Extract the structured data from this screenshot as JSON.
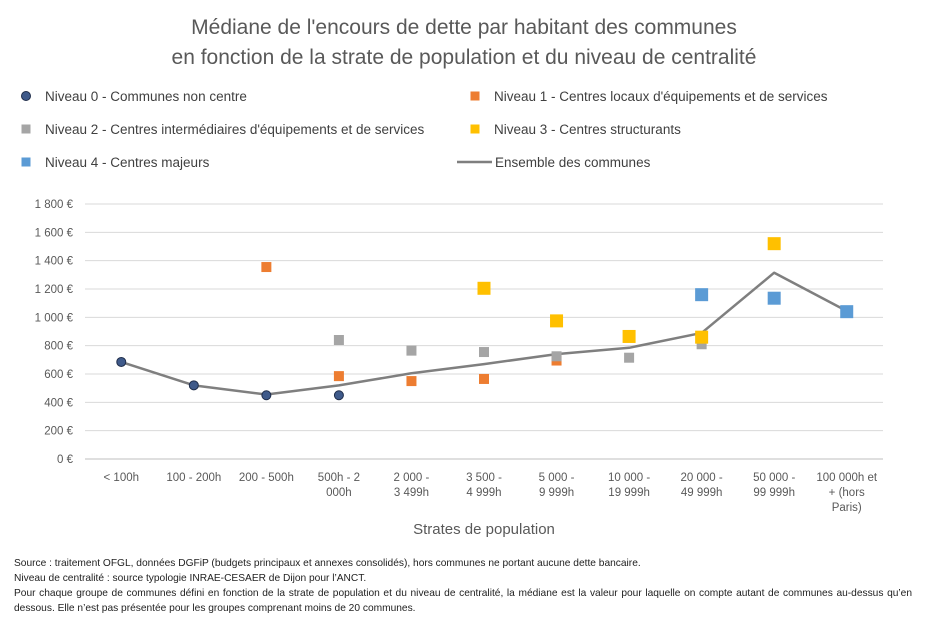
{
  "chart_data": {
    "type": "scatter",
    "title": [
      "Médiane de l'encours de dette par habitant des communes",
      "en fonction de la strate de population et du niveau de centralité"
    ],
    "xlabel": "Strates de population",
    "ylabel": "",
    "categories": [
      [
        "< 100h"
      ],
      [
        "100 - 200h"
      ],
      [
        "200 - 500h"
      ],
      [
        "500h - 2",
        "000h"
      ],
      [
        "2 000 -",
        "3 499h"
      ],
      [
        "3 500 -",
        "4 999h"
      ],
      [
        "5 000 -",
        "9 999h"
      ],
      [
        "10 000 -",
        "19 999h"
      ],
      [
        "20 000 -",
        "49 999h"
      ],
      [
        "50 000 -",
        "99 999h"
      ],
      [
        "100 000h et",
        "+ (hors",
        "Paris)"
      ]
    ],
    "ylim": [
      0,
      1800
    ],
    "yticks": [
      {
        "value": 0,
        "label": "0 €"
      },
      {
        "value": 200,
        "label": "200 €"
      },
      {
        "value": 400,
        "label": "400 €"
      },
      {
        "value": 600,
        "label": "600 €"
      },
      {
        "value": 800,
        "label": "800 €"
      },
      {
        "value": 1000,
        "label": "1 000 €"
      },
      {
        "value": 1200,
        "label": "1 200 €"
      },
      {
        "value": 1400,
        "label": "1 400 €"
      },
      {
        "value": 1600,
        "label": "1 600 €"
      },
      {
        "value": 1800,
        "label": "1 800 €"
      }
    ],
    "grid": true,
    "legend_position": "top",
    "series": [
      {
        "name": "Niveau 0 - Communes non centre",
        "marker": "circle",
        "color": "#3F5A8A",
        "values": [
          685,
          520,
          450,
          450,
          null,
          null,
          null,
          null,
          null,
          null,
          null
        ]
      },
      {
        "name": "Niveau 1 - Centres locaux d'équipements et de services",
        "marker": "square",
        "color": "#ED7D31",
        "values": [
          null,
          null,
          1355,
          585,
          550,
          565,
          695,
          null,
          null,
          null,
          null
        ]
      },
      {
        "name": "Niveau 2 - Centres intermédiaires d'équipements et de services",
        "marker": "square",
        "color": "#A5A5A5",
        "values": [
          null,
          null,
          null,
          840,
          765,
          755,
          725,
          715,
          810,
          null,
          null
        ]
      },
      {
        "name": "Niveau 3 - Centres structurants",
        "marker": "square",
        "color": "#FFC000",
        "values": [
          null,
          null,
          null,
          null,
          null,
          1205,
          975,
          865,
          860,
          1520,
          null
        ]
      },
      {
        "name": "Niveau 4 - Centres majeurs",
        "marker": "square",
        "color": "#5B9BD5",
        "values": [
          null,
          null,
          null,
          null,
          null,
          null,
          null,
          null,
          1160,
          1135,
          1040
        ]
      },
      {
        "name": "Ensemble des communes",
        "marker": "line",
        "color": "#7F7F7F",
        "values": [
          685,
          520,
          455,
          520,
          605,
          670,
          740,
          785,
          890,
          1315,
          1045
        ]
      }
    ]
  },
  "footnotes": [
    "Source : traitement OFGL, données DGFiP (budgets principaux et annexes consolidés), hors communes ne portant aucune dette bancaire.",
    "Niveau de centralité : source typologie INRAE-CESAER de Dijon pour l’ANCT.",
    "Pour chaque groupe de communes défini en fonction de la strate de population et du niveau de centralité, la médiane est la valeur pour laquelle on compte autant de communes au-dessus qu’en dessous. Elle n’est pas présentée pour les groupes comprenant moins de 20 communes."
  ]
}
